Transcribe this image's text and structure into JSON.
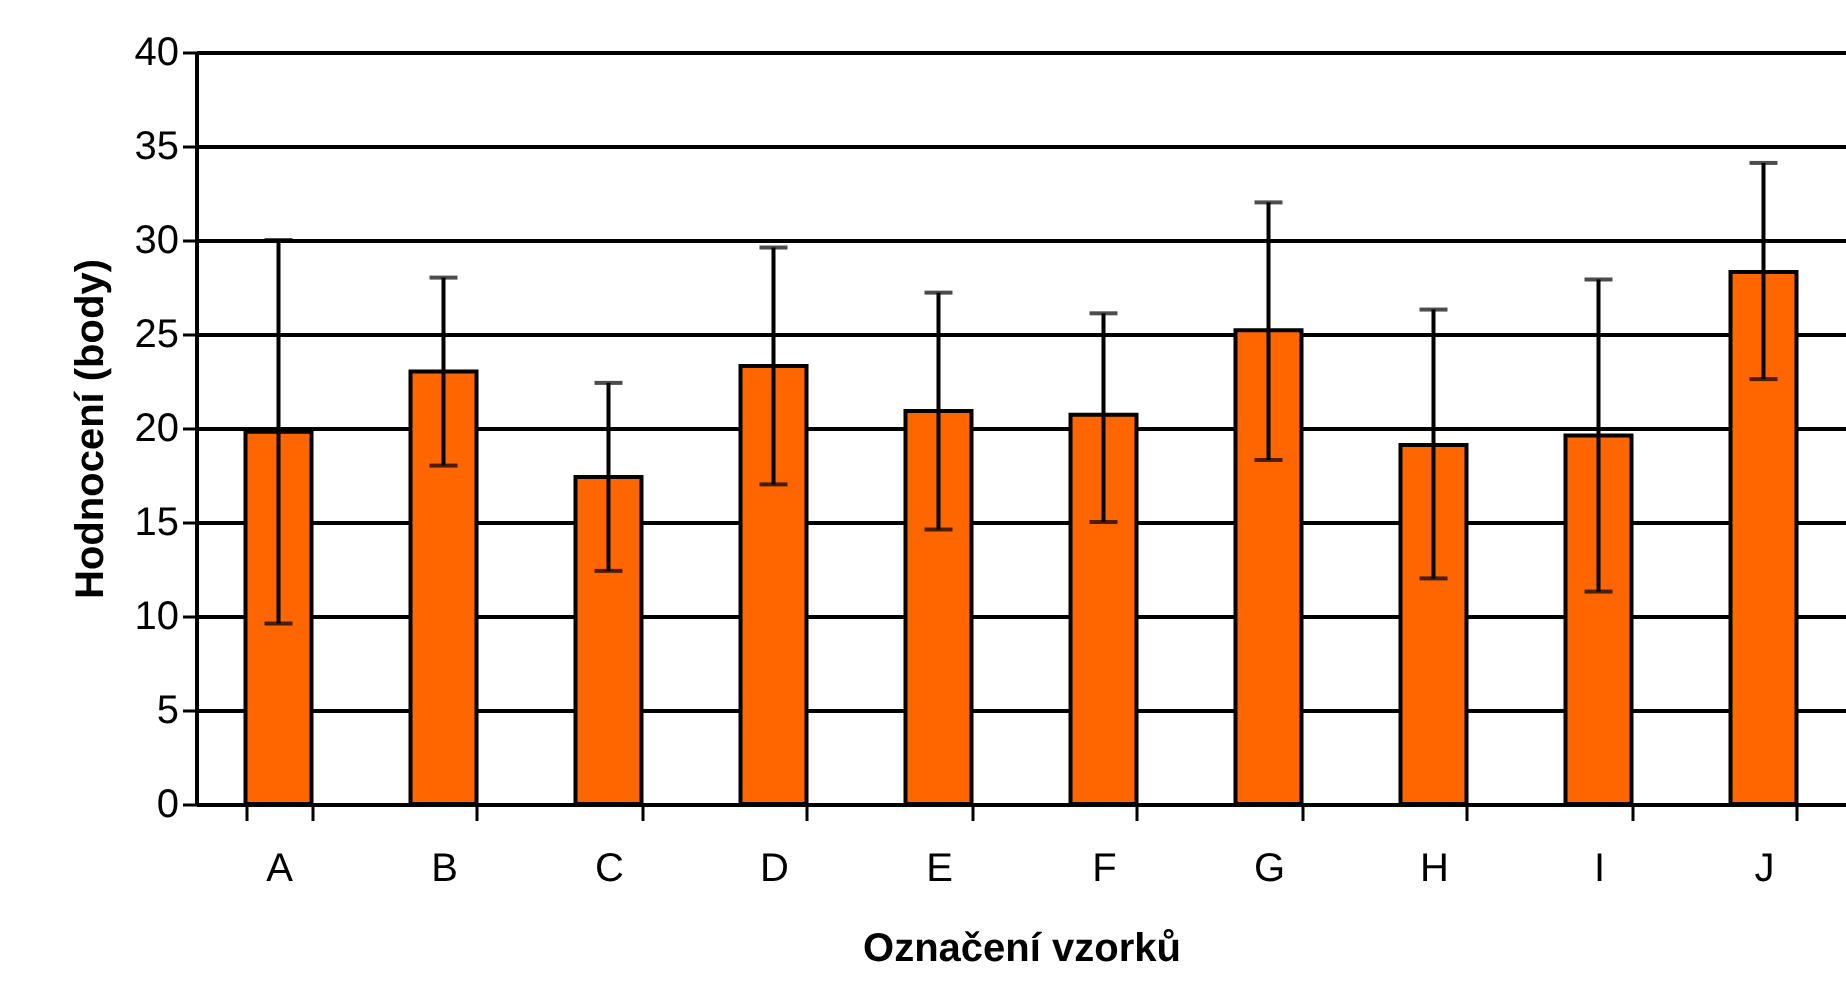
{
  "chart_data": {
    "type": "bar",
    "xlabel": "Označení vzorků",
    "ylabel": "Hodnocení (body)",
    "categories": [
      "A",
      "B",
      "C",
      "D",
      "E",
      "F",
      "G",
      "H",
      "I",
      "J"
    ],
    "values": [
      19.8,
      23.0,
      17.4,
      23.3,
      20.9,
      20.7,
      25.2,
      19.1,
      19.6,
      28.3
    ],
    "errors": [
      [
        9.6,
        30.0
      ],
      [
        18.0,
        28.0
      ],
      [
        12.4,
        22.4
      ],
      [
        17.0,
        29.6
      ],
      [
        14.6,
        27.2
      ],
      [
        15.0,
        26.1
      ],
      [
        18.3,
        32.0
      ],
      [
        12.0,
        26.3
      ],
      [
        11.3,
        27.9
      ],
      [
        22.6,
        34.1
      ]
    ],
    "color": "#ff6600",
    "ylim": [
      0,
      40
    ],
    "yticks": [
      0,
      5,
      10,
      15,
      20,
      25,
      30,
      35,
      40
    ],
    "grid": true
  }
}
